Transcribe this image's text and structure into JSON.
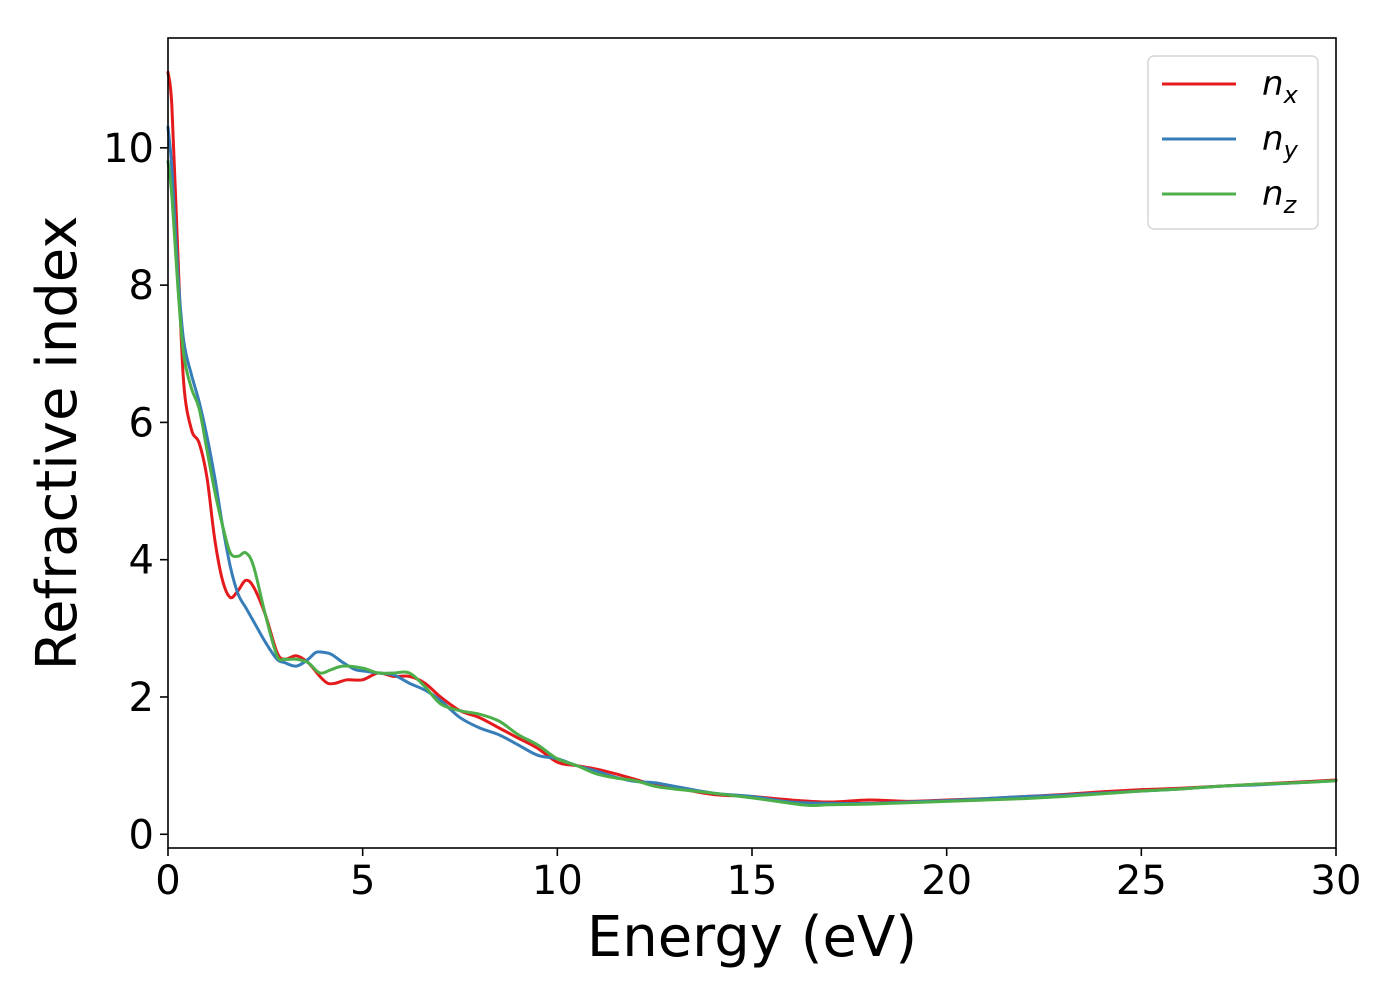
{
  "chart_data": {
    "type": "line",
    "title": "",
    "xlabel": "Energy (eV)",
    "ylabel": "Refractive index",
    "xlim": [
      0,
      30
    ],
    "ylim": [
      -0.2,
      11.6
    ],
    "xticks": [
      0,
      5,
      10,
      15,
      20,
      25,
      30
    ],
    "xtick_labels": [
      "0",
      "5",
      "10",
      "15",
      "20",
      "25",
      "30"
    ],
    "yticks": [
      0,
      2,
      4,
      6,
      8,
      10
    ],
    "ytick_labels": [
      "0",
      "2",
      "4",
      "6",
      "8",
      "10"
    ],
    "grid": false,
    "legend": {
      "position": "top-right",
      "entries": [
        {
          "base": "n",
          "sub": "x"
        },
        {
          "base": "n",
          "sub": "y"
        },
        {
          "base": "n",
          "sub": "z"
        }
      ]
    },
    "series": [
      {
        "name": "n_x",
        "color": "#e41a1c",
        "x": [
          0,
          0.1,
          0.25,
          0.4,
          0.6,
          0.8,
          1.0,
          1.2,
          1.4,
          1.6,
          1.8,
          2.0,
          2.2,
          2.5,
          2.8,
          3.0,
          3.3,
          3.6,
          3.9,
          4.1,
          4.3,
          4.6,
          5.0,
          5.4,
          5.8,
          6.2,
          6.6,
          7.0,
          7.5,
          8.0,
          8.5,
          9.0,
          9.5,
          10.0,
          10.5,
          11.0,
          11.5,
          12.0,
          12.5,
          13.0,
          14.0,
          15.0,
          16.0,
          17.0,
          18.0,
          19.0,
          20.0,
          21.0,
          22.0,
          23.0,
          24.0,
          25.0,
          26.0,
          27.0,
          28.0,
          29.0,
          30.0
        ],
        "values": [
          11.1,
          10.6,
          8.5,
          6.6,
          5.9,
          5.7,
          5.2,
          4.3,
          3.7,
          3.45,
          3.55,
          3.7,
          3.6,
          3.2,
          2.65,
          2.55,
          2.6,
          2.5,
          2.3,
          2.2,
          2.2,
          2.25,
          2.25,
          2.35,
          2.3,
          2.3,
          2.2,
          2.0,
          1.8,
          1.7,
          1.55,
          1.4,
          1.25,
          1.05,
          1.0,
          0.95,
          0.88,
          0.8,
          0.72,
          0.68,
          0.58,
          0.55,
          0.5,
          0.47,
          0.5,
          0.48,
          0.5,
          0.52,
          0.55,
          0.58,
          0.62,
          0.65,
          0.67,
          0.7,
          0.73,
          0.76,
          0.79
        ]
      },
      {
        "name": "n_y",
        "color": "#377eb8",
        "x": [
          0,
          0.1,
          0.25,
          0.4,
          0.6,
          0.8,
          1.0,
          1.2,
          1.4,
          1.6,
          1.8,
          2.0,
          2.2,
          2.5,
          2.8,
          3.0,
          3.3,
          3.6,
          3.8,
          4.0,
          4.2,
          4.5,
          4.8,
          5.0,
          5.4,
          5.8,
          6.2,
          6.6,
          7.0,
          7.5,
          8.0,
          8.5,
          9.0,
          9.5,
          10.0,
          10.5,
          11.0,
          11.5,
          12.0,
          12.5,
          13.0,
          14.0,
          15.0,
          16.0,
          17.0,
          18.0,
          19.0,
          20.0,
          21.0,
          22.0,
          23.0,
          24.0,
          25.0,
          26.0,
          27.0,
          28.0,
          29.0,
          30.0
        ],
        "values": [
          10.3,
          9.7,
          8.2,
          7.2,
          6.7,
          6.3,
          5.8,
          5.2,
          4.5,
          3.9,
          3.5,
          3.3,
          3.1,
          2.8,
          2.55,
          2.5,
          2.45,
          2.55,
          2.65,
          2.65,
          2.62,
          2.5,
          2.4,
          2.38,
          2.35,
          2.32,
          2.2,
          2.1,
          1.95,
          1.7,
          1.55,
          1.45,
          1.3,
          1.15,
          1.1,
          1.0,
          0.92,
          0.83,
          0.77,
          0.75,
          0.7,
          0.6,
          0.55,
          0.47,
          0.45,
          0.45,
          0.47,
          0.49,
          0.52,
          0.55,
          0.57,
          0.6,
          0.63,
          0.66,
          0.7,
          0.72,
          0.75,
          0.78
        ]
      },
      {
        "name": "n_z",
        "color": "#4daf4a",
        "x": [
          0,
          0.1,
          0.25,
          0.4,
          0.6,
          0.8,
          1.0,
          1.2,
          1.4,
          1.6,
          1.8,
          2.0,
          2.2,
          2.5,
          2.8,
          3.0,
          3.3,
          3.6,
          3.9,
          4.2,
          4.5,
          5.0,
          5.4,
          5.8,
          6.2,
          6.6,
          7.0,
          7.5,
          8.0,
          8.5,
          9.0,
          9.5,
          10.0,
          10.5,
          11.0,
          11.5,
          12.0,
          12.5,
          13.0,
          14.0,
          15.0,
          16.0,
          16.5,
          17.0,
          18.0,
          19.0,
          20.0,
          21.0,
          22.0,
          23.0,
          24.0,
          25.0,
          26.0,
          27.0,
          28.0,
          29.0,
          30.0
        ],
        "values": [
          9.8,
          9.3,
          8.0,
          7.0,
          6.5,
          6.2,
          5.6,
          5.0,
          4.5,
          4.1,
          4.05,
          4.1,
          3.9,
          3.2,
          2.6,
          2.55,
          2.55,
          2.5,
          2.35,
          2.4,
          2.45,
          2.42,
          2.35,
          2.35,
          2.35,
          2.15,
          1.9,
          1.8,
          1.75,
          1.65,
          1.45,
          1.3,
          1.1,
          1.0,
          0.88,
          0.82,
          0.78,
          0.7,
          0.66,
          0.6,
          0.53,
          0.45,
          0.42,
          0.43,
          0.44,
          0.46,
          0.48,
          0.5,
          0.52,
          0.55,
          0.59,
          0.63,
          0.66,
          0.7,
          0.73,
          0.75,
          0.78
        ]
      }
    ]
  }
}
